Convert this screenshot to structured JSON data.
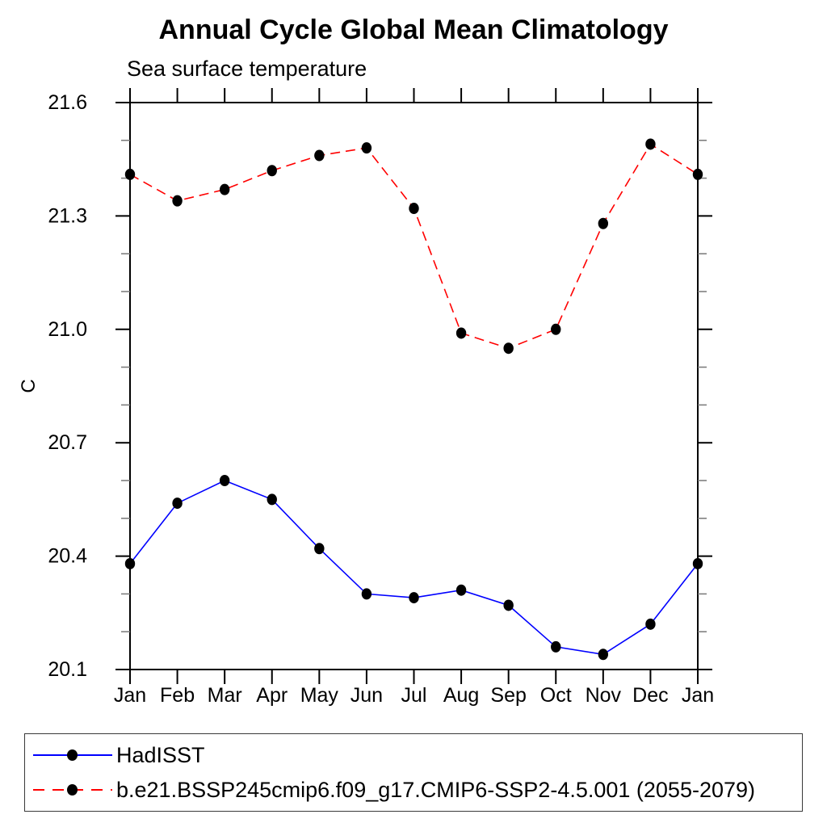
{
  "page": {
    "background": "#ffffff",
    "text_color": "#000000"
  },
  "chart_data": {
    "type": "line",
    "title": "Annual Cycle Global Mean Climatology",
    "subtitle": "Sea surface temperature",
    "xlabel": "",
    "ylabel": "C",
    "categories": [
      "Jan",
      "Feb",
      "Mar",
      "Apr",
      "May",
      "Jun",
      "Jul",
      "Aug",
      "Sep",
      "Oct",
      "Nov",
      "Dec",
      "Jan"
    ],
    "ylim": [
      20.1,
      21.6
    ],
    "y_major_ticks": [
      21.6,
      21.3,
      21.0,
      20.7,
      20.4,
      20.1
    ],
    "y_minor_step": 0.1,
    "grid": false,
    "frame": "box-with-outward-ticks",
    "legend_position": "bottom-outside-box",
    "axis_color": "#000000",
    "minor_tick_color": "#777777",
    "series": [
      {
        "name": "HadISST",
        "line_color": "#0000ff",
        "line_style": "solid",
        "marker": "circle",
        "marker_color": "#000000",
        "values": [
          20.38,
          20.54,
          20.6,
          20.55,
          20.42,
          20.3,
          20.29,
          20.31,
          20.27,
          20.16,
          20.14,
          20.22,
          20.38
        ]
      },
      {
        "name": "b.e21.BSSP245cmip6.f09_g17.CMIP6-SSP2-4.5.001 (2055-2079)",
        "line_color": "#ff0000",
        "line_style": "dashed",
        "marker": "circle",
        "marker_color": "#000000",
        "values": [
          21.41,
          21.34,
          21.37,
          21.42,
          21.46,
          21.48,
          21.32,
          20.99,
          20.95,
          21.0,
          21.28,
          21.49,
          21.41
        ]
      }
    ]
  }
}
